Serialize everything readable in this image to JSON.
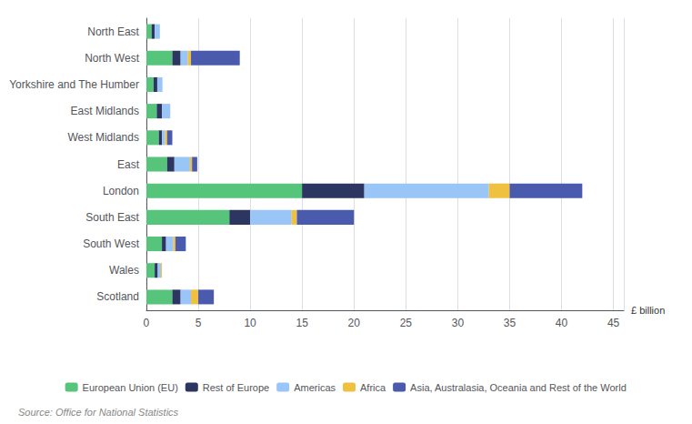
{
  "chart_data": {
    "type": "bar",
    "orientation": "horizontal",
    "stacked": true,
    "categories": [
      "North East",
      "North West",
      "Yorkshire and The Humber",
      "East Midlands",
      "West Midlands",
      "East",
      "London",
      "South East",
      "South West",
      "Wales",
      "Scotland"
    ],
    "series": [
      {
        "name": "European Union (EU)",
        "color": "#57c47b",
        "values": [
          0.5,
          2.5,
          0.7,
          1.0,
          1.2,
          2.0,
          15.0,
          8.0,
          1.5,
          0.8,
          2.5
        ]
      },
      {
        "name": "Rest of Europe",
        "color": "#2d3561",
        "values": [
          0.3,
          0.8,
          0.35,
          0.5,
          0.3,
          0.7,
          6.0,
          2.0,
          0.4,
          0.3,
          0.8
        ]
      },
      {
        "name": "Americas",
        "color": "#99c5f7",
        "values": [
          0.5,
          0.7,
          0.5,
          0.8,
          0.3,
          1.5,
          12.0,
          4.0,
          0.7,
          0.3,
          1.0
        ]
      },
      {
        "name": "Africa",
        "color": "#f0c040",
        "values": [
          0.0,
          0.3,
          0.0,
          0.0,
          0.2,
          0.2,
          2.0,
          0.5,
          0.2,
          0.1,
          0.7
        ]
      },
      {
        "name": "Asia, Australasia, Oceania and Rest of the World",
        "color": "#4a5aad",
        "values": [
          0.0,
          4.7,
          0.0,
          0.0,
          0.5,
          0.5,
          7.0,
          5.5,
          1.0,
          0.0,
          1.5
        ]
      }
    ],
    "xlabel": "£ billion",
    "xlim": [
      0,
      46
    ],
    "xticks": [
      0,
      5,
      10,
      15,
      20,
      25,
      30,
      35,
      40,
      45
    ],
    "grid": true,
    "legend": "bottom",
    "source": "Source: Office for National Statistics"
  }
}
